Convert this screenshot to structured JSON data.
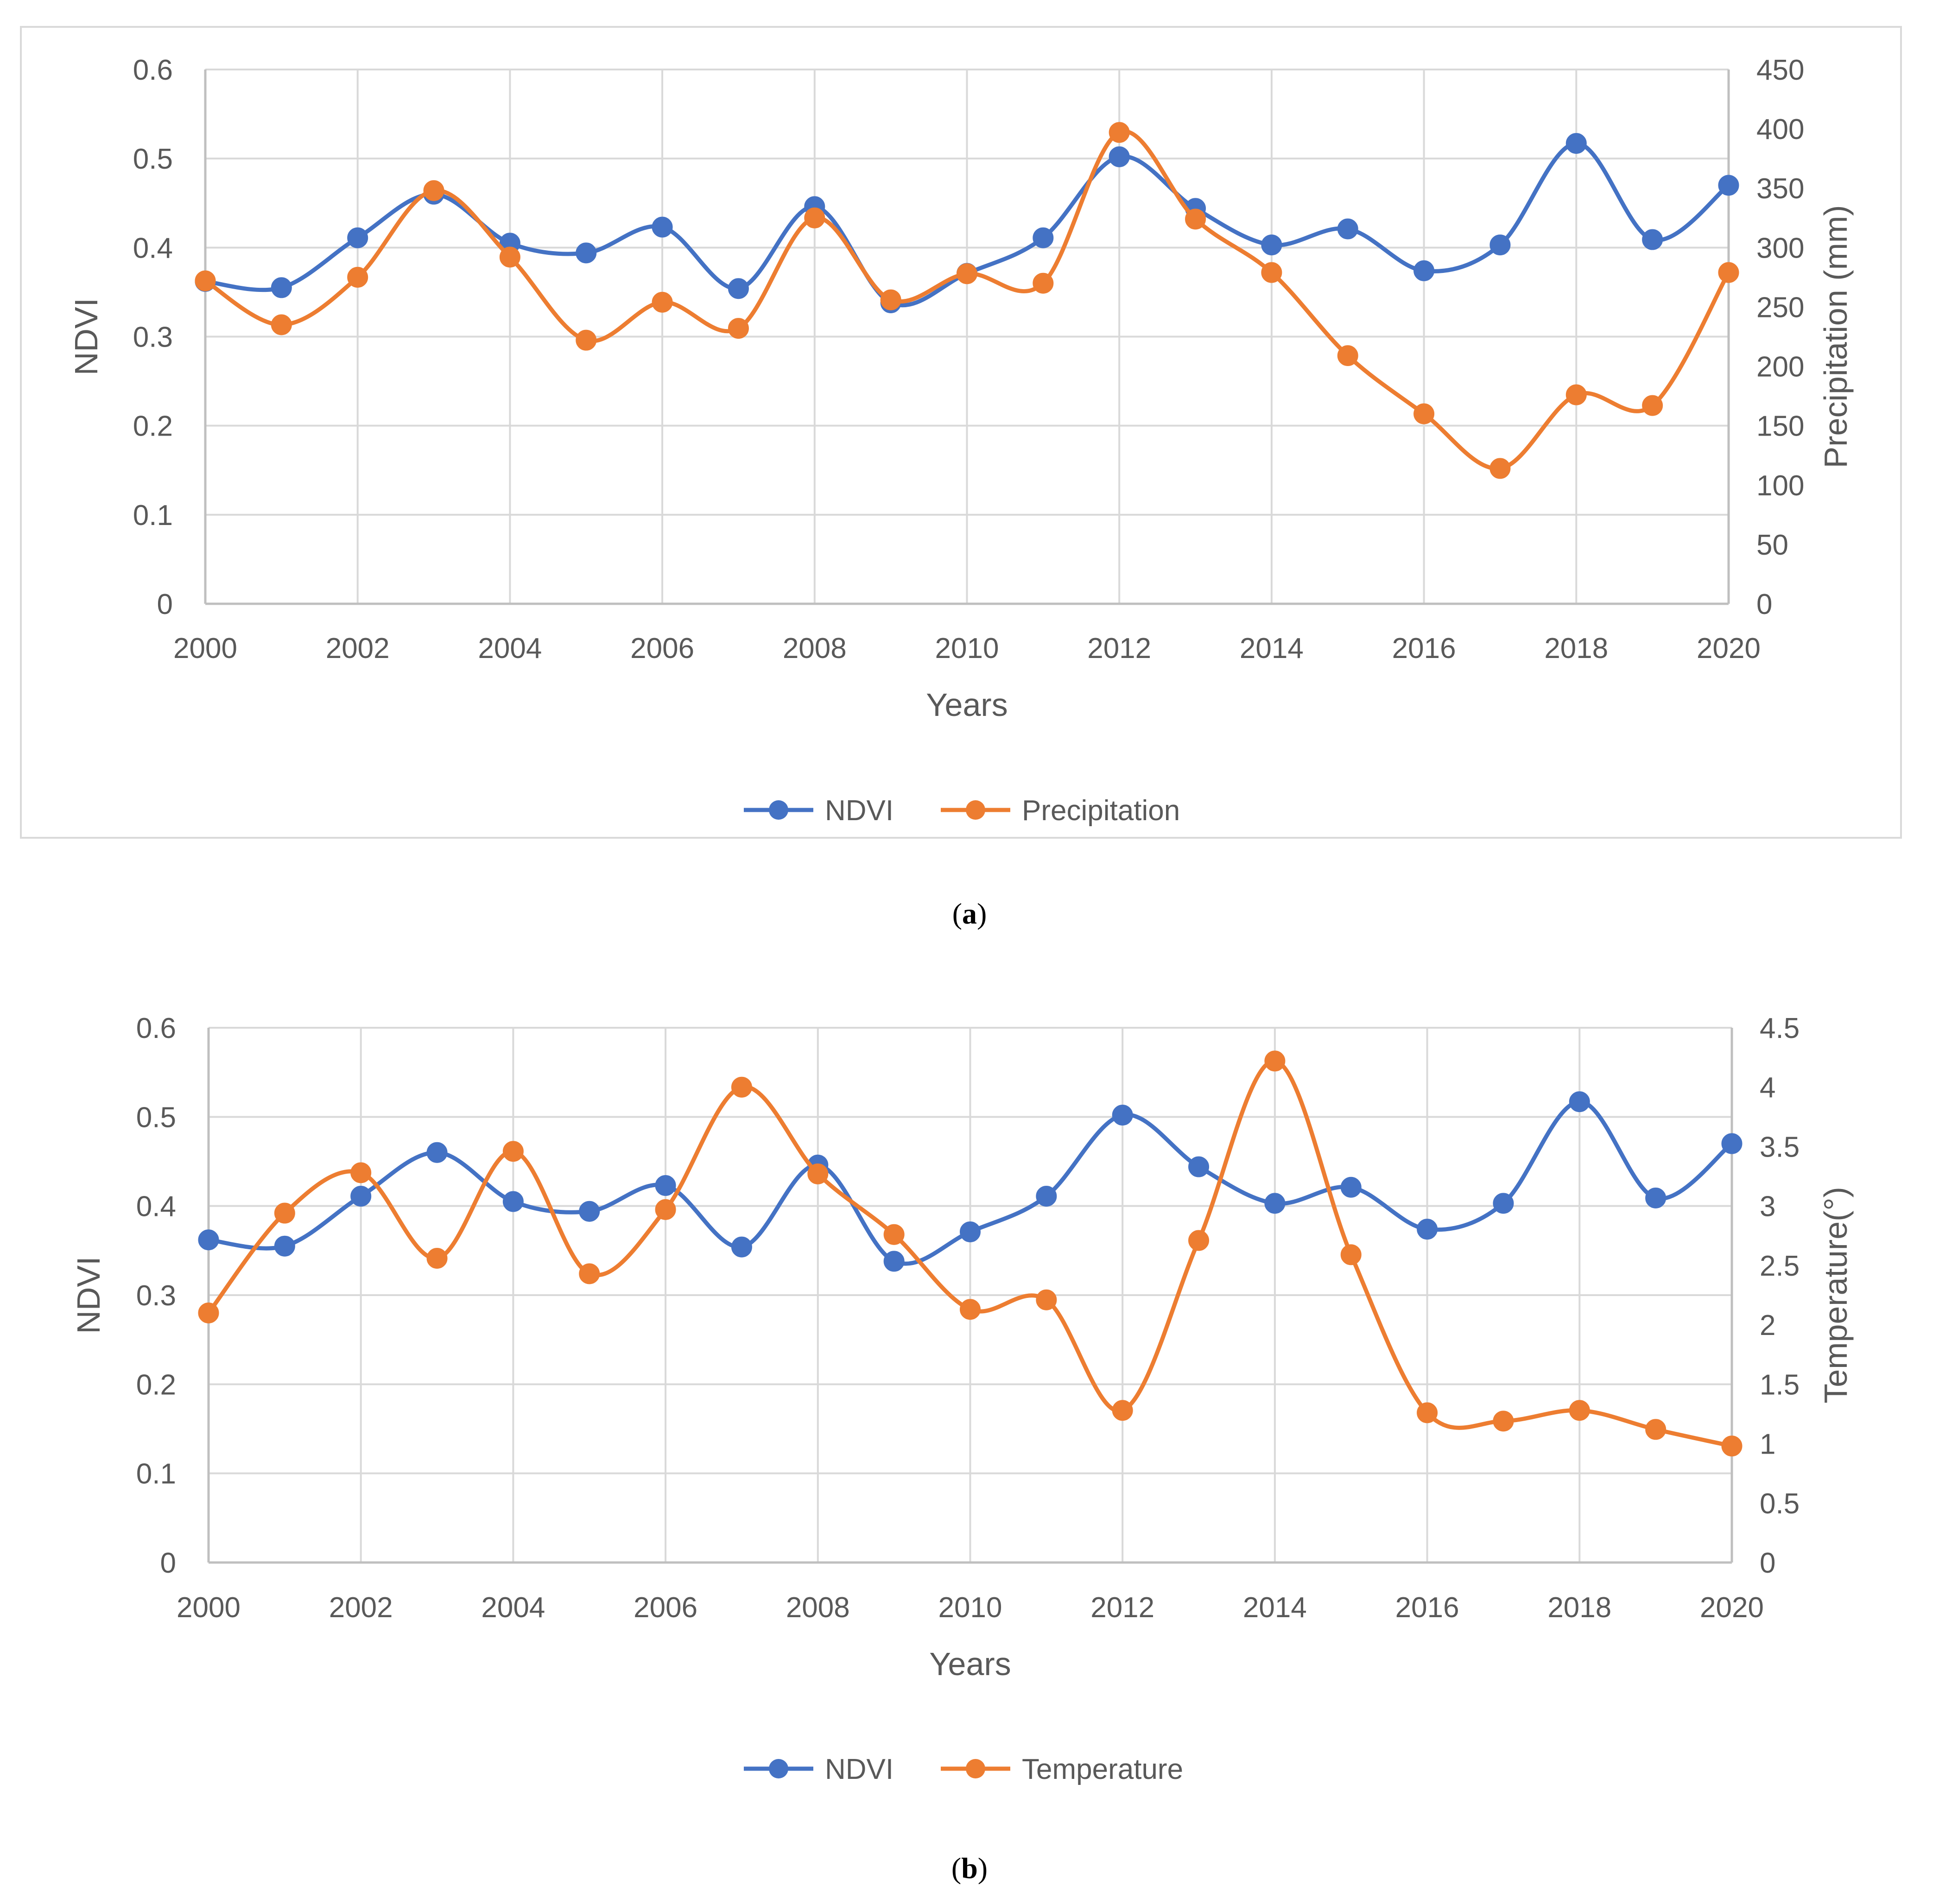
{
  "colors": {
    "ndvi": "#4472C4",
    "secondary": "#ED7D31",
    "grid": "#D9D9D9",
    "axis": "#BFBFBF",
    "text": "#595959",
    "frame": "#D9D9D9"
  },
  "chart_data": [
    {
      "type": "line",
      "id": "a",
      "caption_letter": "a",
      "title": "",
      "xlabel": "Years",
      "ylabel": "NDVI",
      "y2label": "Precipitation (mm)",
      "x": [
        2000,
        2001,
        2002,
        2003,
        2004,
        2005,
        2006,
        2007,
        2008,
        2009,
        2010,
        2011,
        2012,
        2013,
        2014,
        2015,
        2016,
        2017,
        2018,
        2019,
        2020
      ],
      "x_ticks": [
        2000,
        2002,
        2004,
        2006,
        2008,
        2010,
        2012,
        2014,
        2016,
        2018,
        2020
      ],
      "x_tick_labels": [
        "2000",
        "2002",
        "2004",
        "2006",
        "2008",
        "2010",
        "2012",
        "2014",
        "2016",
        "2018",
        "2020"
      ],
      "xlim": [
        2000,
        2020
      ],
      "ylim": [
        0,
        0.6
      ],
      "y_ticks": [
        0,
        0.1,
        0.2,
        0.3,
        0.4,
        0.5,
        0.6
      ],
      "y_tick_labels": [
        "0",
        "0.1",
        "0.2",
        "0.3",
        "0.4",
        "0.5",
        "0.6"
      ],
      "y2lim": [
        0,
        450
      ],
      "y2_ticks": [
        0,
        50,
        100,
        150,
        200,
        250,
        300,
        350,
        400,
        450
      ],
      "y2_tick_labels": [
        "0",
        "50",
        "100",
        "150",
        "200",
        "250",
        "300",
        "350",
        "400",
        "450"
      ],
      "grid": true,
      "legend_position": "bottom",
      "series": [
        {
          "name": "NDVI",
          "axis": "left",
          "values": [
            0.362,
            0.355,
            0.411,
            0.46,
            0.405,
            0.394,
            0.423,
            0.354,
            0.446,
            0.338,
            0.371,
            0.411,
            0.502,
            0.444,
            0.403,
            0.421,
            0.374,
            0.403,
            0.517,
            0.409,
            0.47
          ]
        },
        {
          "name": "Precipitation",
          "axis": "right",
          "values": [
            272,
            235,
            275,
            348,
            292,
            222,
            254,
            232,
            325,
            256,
            278,
            270,
            397,
            324,
            279,
            209,
            160,
            114,
            176,
            167,
            279
          ]
        }
      ]
    },
    {
      "type": "line",
      "id": "b",
      "caption_letter": "b",
      "title": "",
      "xlabel": "Years",
      "ylabel": "NDVI",
      "y2label": "Temperature(°)",
      "x": [
        2000,
        2001,
        2002,
        2003,
        2004,
        2005,
        2006,
        2007,
        2008,
        2009,
        2010,
        2011,
        2012,
        2013,
        2014,
        2015,
        2016,
        2017,
        2018,
        2019,
        2020
      ],
      "x_ticks": [
        2000,
        2002,
        2004,
        2006,
        2008,
        2010,
        2012,
        2014,
        2016,
        2018,
        2020
      ],
      "x_tick_labels": [
        "2000",
        "2002",
        "2004",
        "2006",
        "2008",
        "2010",
        "2012",
        "2014",
        "2016",
        "2018",
        "2020"
      ],
      "xlim": [
        2000,
        2020
      ],
      "ylim": [
        0,
        0.6
      ],
      "y_ticks": [
        0,
        0.1,
        0.2,
        0.3,
        0.4,
        0.5,
        0.6
      ],
      "y_tick_labels": [
        "0",
        "0.1",
        "0.2",
        "0.3",
        "0.4",
        "0.5",
        "0.6"
      ],
      "y2lim": [
        0,
        4.5
      ],
      "y2_ticks": [
        0,
        0.5,
        1,
        1.5,
        2,
        2.5,
        3,
        3.5,
        4,
        4.5
      ],
      "y2_tick_labels": [
        "0",
        "0.5",
        "1",
        "1.5",
        "2",
        "2.5",
        "3",
        "3.5",
        "4",
        "4.5"
      ],
      "grid": true,
      "legend_position": "bottom",
      "series": [
        {
          "name": "NDVI",
          "axis": "left",
          "values": [
            0.362,
            0.355,
            0.411,
            0.46,
            0.405,
            0.394,
            0.423,
            0.354,
            0.446,
            0.338,
            0.371,
            0.411,
            0.502,
            0.444,
            0.403,
            0.421,
            0.374,
            0.403,
            0.517,
            0.409,
            0.47
          ]
        },
        {
          "name": "Temperature",
          "axis": "right",
          "values": [
            2.1,
            2.94,
            3.28,
            2.56,
            3.46,
            2.43,
            2.97,
            4.0,
            3.27,
            2.76,
            2.13,
            2.21,
            1.28,
            2.71,
            4.22,
            2.59,
            1.26,
            1.19,
            1.28,
            1.12,
            0.98
          ]
        }
      ]
    }
  ]
}
